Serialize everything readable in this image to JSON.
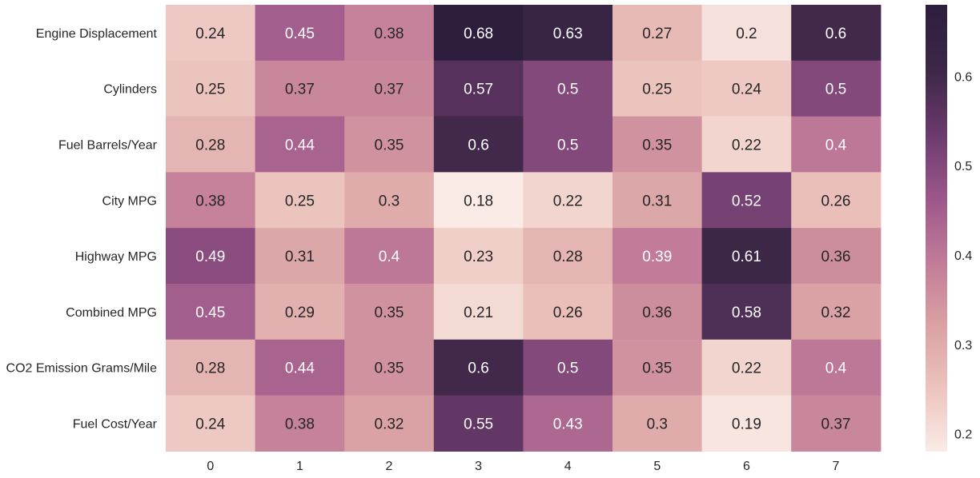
{
  "chart_data": {
    "type": "heatmap",
    "rows": [
      "Engine Displacement",
      "Cylinders",
      "Fuel Barrels/Year",
      "City MPG",
      "Highway MPG",
      "Combined MPG",
      "CO2 Emission Grams/Mile",
      "Fuel Cost/Year"
    ],
    "columns": [
      "0",
      "1",
      "2",
      "3",
      "4",
      "5",
      "6",
      "7"
    ],
    "values": [
      [
        0.24,
        0.45,
        0.38,
        0.68,
        0.63,
        0.27,
        0.2,
        0.6
      ],
      [
        0.25,
        0.37,
        0.37,
        0.57,
        0.5,
        0.25,
        0.24,
        0.5
      ],
      [
        0.28,
        0.44,
        0.35,
        0.6,
        0.5,
        0.35,
        0.22,
        0.4
      ],
      [
        0.38,
        0.25,
        0.3,
        0.18,
        0.22,
        0.31,
        0.52,
        0.26
      ],
      [
        0.49,
        0.31,
        0.4,
        0.23,
        0.28,
        0.39,
        0.61,
        0.36
      ],
      [
        0.45,
        0.29,
        0.35,
        0.21,
        0.26,
        0.36,
        0.58,
        0.32
      ],
      [
        0.28,
        0.44,
        0.35,
        0.6,
        0.5,
        0.35,
        0.22,
        0.4
      ],
      [
        0.24,
        0.38,
        0.32,
        0.55,
        0.43,
        0.3,
        0.19,
        0.37
      ]
    ],
    "vmin": 0.18,
    "vmax": 0.68,
    "colorbar_ticks": [
      0.2,
      0.3,
      0.4,
      0.5,
      0.6
    ],
    "colorbar_tick_labels": [
      "0.2",
      "0.3",
      "0.4",
      "0.5",
      "0.6"
    ],
    "colormap": [
      "#faebe6",
      "#ecc3bd",
      "#d9a1a3",
      "#c07a98",
      "#9a5689",
      "#6a3a6c",
      "#3c2746",
      "#2d1e3e"
    ],
    "annotation_text_dark": "#262626",
    "annotation_text_light": "#ffffff",
    "title": "",
    "xlabel": "",
    "ylabel": "",
    "grid": false,
    "legend": "colorbar-right"
  }
}
